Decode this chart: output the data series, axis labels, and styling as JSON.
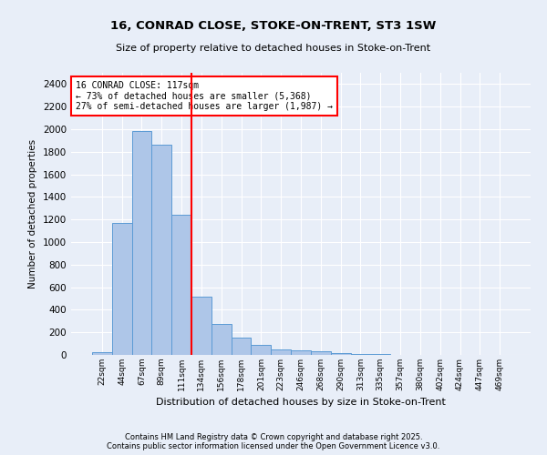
{
  "title1": "16, CONRAD CLOSE, STOKE-ON-TRENT, ST3 1SW",
  "title2": "Size of property relative to detached houses in Stoke-on-Trent",
  "xlabel": "Distribution of detached houses by size in Stoke-on-Trent",
  "ylabel": "Number of detached properties",
  "bin_labels": [
    "22sqm",
    "44sqm",
    "67sqm",
    "89sqm",
    "111sqm",
    "134sqm",
    "156sqm",
    "178sqm",
    "201sqm",
    "223sqm",
    "246sqm",
    "268sqm",
    "290sqm",
    "313sqm",
    "335sqm",
    "357sqm",
    "380sqm",
    "402sqm",
    "424sqm",
    "447sqm",
    "469sqm"
  ],
  "bar_values": [
    25,
    1170,
    1980,
    1860,
    1240,
    520,
    275,
    155,
    90,
    45,
    40,
    30,
    20,
    10,
    5,
    3,
    2,
    2,
    1,
    1,
    1
  ],
  "bar_color": "#aec6e8",
  "bar_edge_color": "#5b9bd5",
  "vline_color": "red",
  "annotation_text": "16 CONRAD CLOSE: 117sqm\n← 73% of detached houses are smaller (5,368)\n27% of semi-detached houses are larger (1,987) →",
  "annotation_box_color": "#ffffff",
  "annotation_box_edge": "red",
  "ylim": [
    0,
    2500
  ],
  "yticks": [
    0,
    200,
    400,
    600,
    800,
    1000,
    1200,
    1400,
    1600,
    1800,
    2000,
    2200,
    2400
  ],
  "bg_color": "#e8eef8",
  "grid_color": "#ffffff",
  "footnote": "Contains HM Land Registry data © Crown copyright and database right 2025.\nContains public sector information licensed under the Open Government Licence v3.0."
}
